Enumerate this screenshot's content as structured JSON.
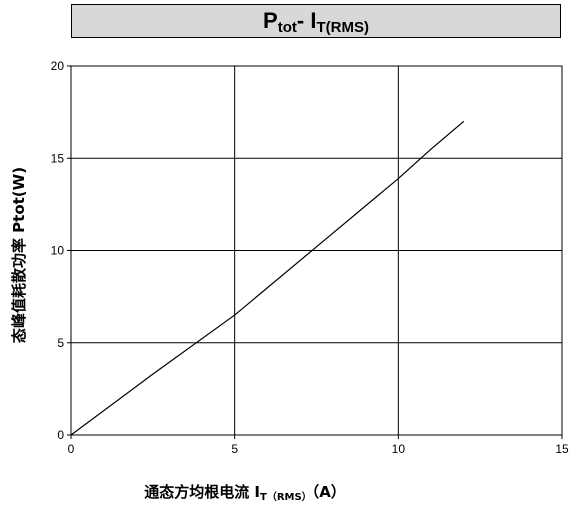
{
  "chart_data": {
    "type": "line",
    "title": {
      "main": "P",
      "sub1": "tot",
      "mid": "- I",
      "sub2": "T(RMS)"
    },
    "xlabel": {
      "main": "通态方均根电流 I",
      "sub": "T（RMS）",
      "tail": "（A）"
    },
    "ylabel": "态峰值耗散功率 Ptot(W)",
    "xlim": [
      0,
      15
    ],
    "ylim": [
      0,
      20
    ],
    "xticks": [
      0,
      5,
      10,
      15
    ],
    "yticks": [
      0,
      5,
      10,
      15,
      20
    ],
    "grid": true,
    "series": [
      {
        "x": [
          0,
          2.5,
          5,
          7.5,
          10,
          11,
          12
        ],
        "y": [
          0,
          3.3,
          6.5,
          10.2,
          13.9,
          15.5,
          17.0
        ]
      }
    ],
    "colors": {
      "line": "#000000",
      "grid": "#000000",
      "title_bg": "#d8d8d8"
    }
  }
}
